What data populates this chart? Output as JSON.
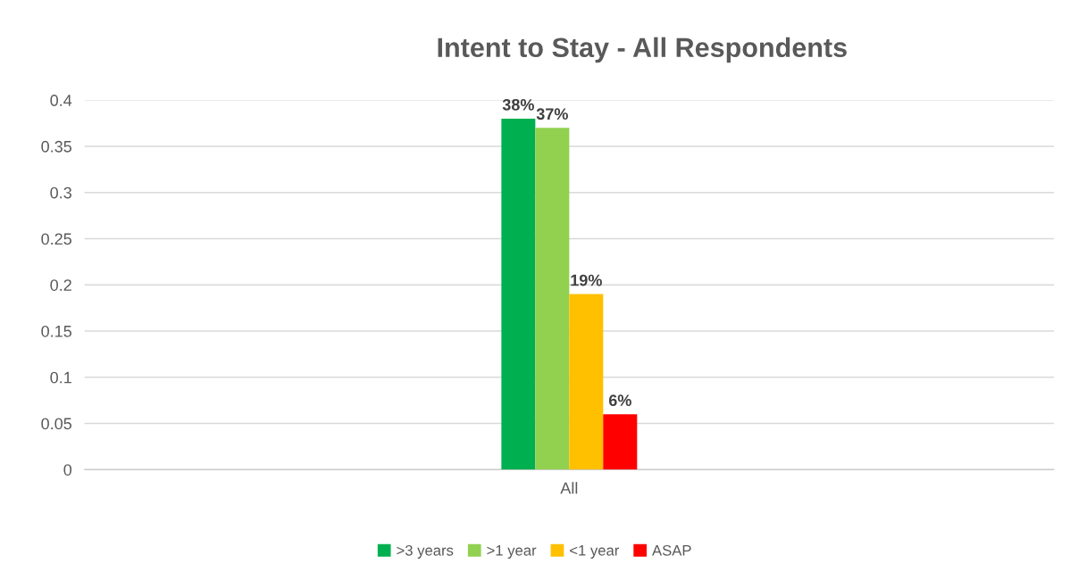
{
  "chart_data": {
    "type": "bar",
    "title": "Intent to Stay - All Respondents",
    "categories": [
      "All"
    ],
    "series": [
      {
        "name": ">3 years",
        "color": "#00b050",
        "values": [
          0.38
        ],
        "value_labels": [
          "38%"
        ]
      },
      {
        "name": ">1 year",
        "color": "#92d050",
        "values": [
          0.37
        ],
        "value_labels": [
          "37%"
        ]
      },
      {
        "name": "<1 year",
        "color": "#ffc000",
        "values": [
          0.19
        ],
        "value_labels": [
          "19%"
        ]
      },
      {
        "name": "ASAP",
        "color": "#ff0000",
        "values": [
          0.06
        ],
        "value_labels": [
          "6%"
        ]
      }
    ],
    "ylim": [
      0,
      0.4
    ],
    "yticks": [
      0,
      0.05,
      0.1,
      0.15,
      0.2,
      0.25,
      0.3,
      0.35,
      0.4
    ],
    "grid": "y",
    "legend": "bottom"
  }
}
